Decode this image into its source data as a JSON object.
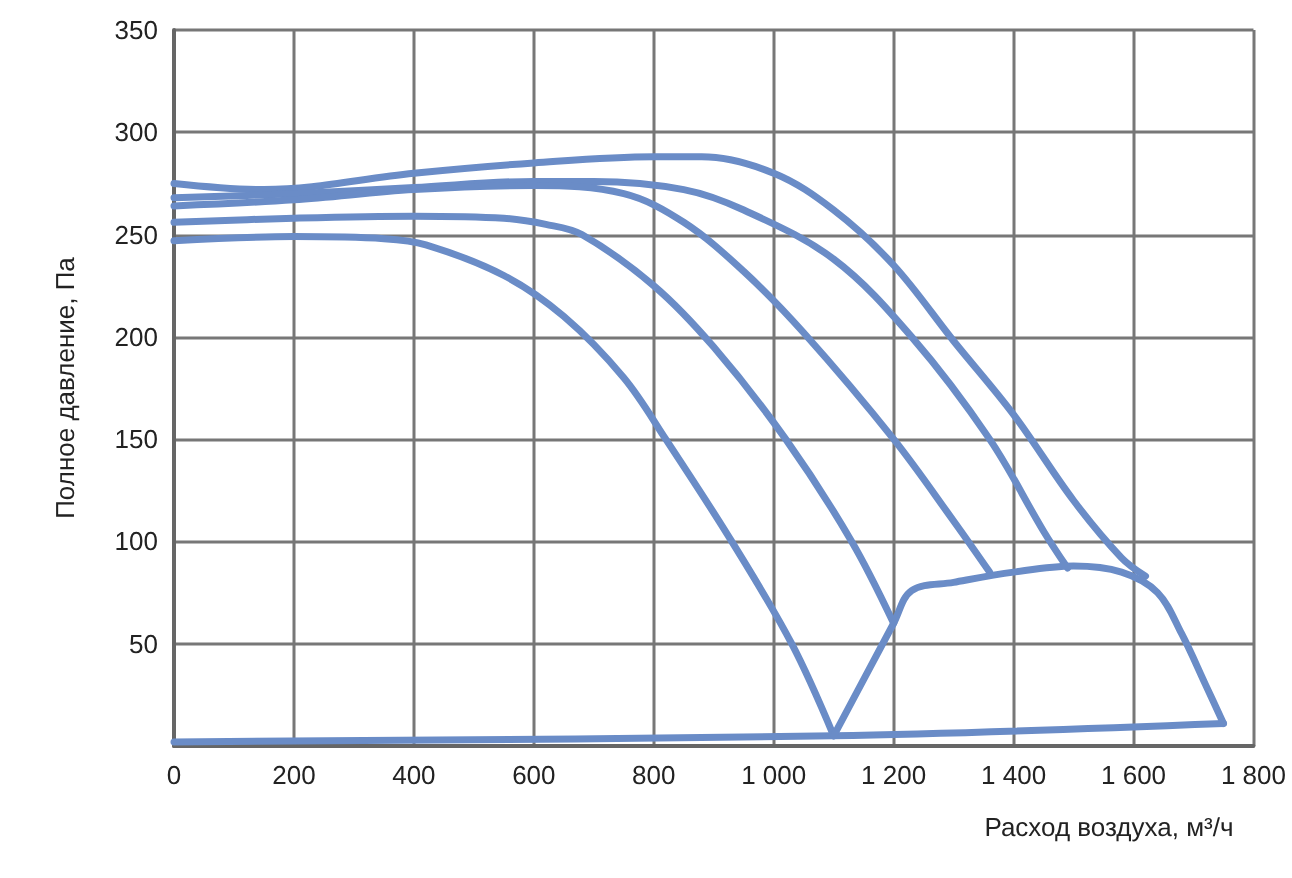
{
  "chart_data": {
    "type": "line",
    "xlabel": "Расход воздуха, м³/ч",
    "ylabel": "Полное давление, Па",
    "xlim": [
      0,
      1800
    ],
    "xticks": [
      0,
      200,
      400,
      600,
      800,
      {
        "value": 1000,
        "label": "1 000"
      },
      {
        "value": 1200,
        "label": "1 200"
      },
      {
        "value": 1400,
        "label": "1 400"
      },
      {
        "value": 1600,
        "label": "1 600"
      },
      {
        "value": 1800,
        "label": "1 800"
      }
    ],
    "ylim": [
      0,
      350
    ],
    "yticks": [
      {
        "value": 0,
        "label": null
      },
      50,
      100,
      150,
      200,
      250,
      300,
      350
    ],
    "grid": true,
    "marker": "none",
    "line_style": "solid",
    "series": [
      {
        "color": "#6a8cc7",
        "x": [
          0,
          150,
          400,
          600,
          800,
          880,
          1000,
          1100,
          1200,
          1300,
          1400,
          1500,
          1580,
          1620
        ],
        "values": [
          275,
          272,
          280,
          285,
          288,
          288,
          280,
          262,
          235,
          198,
          162,
          120,
          92,
          83
        ]
      },
      {
        "color": "#6a8cc7",
        "x": [
          0,
          200,
          400,
          600,
          700,
          850,
          950,
          1100,
          1230,
          1360,
          1450,
          1490
        ],
        "values": [
          268,
          270,
          273,
          276,
          276,
          272,
          262,
          238,
          200,
          150,
          105,
          87
        ]
      },
      {
        "color": "#6a8cc7",
        "x": [
          0,
          200,
          400,
          600,
          750,
          850,
          950,
          1050,
          1200,
          1300,
          1360
        ],
        "values": [
          264,
          267,
          272,
          274,
          270,
          256,
          232,
          202,
          150,
          110,
          85
        ]
      },
      {
        "color": "#6a8cc7",
        "x": [
          0,
          200,
          400,
          550,
          620,
          680,
          800,
          900,
          1020,
          1130,
          1200
        ],
        "values": [
          256,
          258,
          259,
          258,
          255,
          250,
          225,
          195,
          150,
          100,
          60
        ]
      },
      {
        "color": "#6a8cc7",
        "x": [
          0,
          200,
          350,
          420,
          550,
          650,
          750,
          820,
          930,
          1030,
          1100
        ],
        "values": [
          247,
          249,
          248,
          245,
          230,
          210,
          180,
          150,
          100,
          50,
          5
        ]
      },
      {
        "color": "#6a8cc7",
        "x": [
          0,
          1100,
          1750
        ],
        "values": [
          2,
          5,
          11
        ]
      },
      {
        "color": "#6a8cc7",
        "x": [
          1100,
          1200,
          1230,
          1300,
          1400,
          1500,
          1580,
          1640,
          1680,
          1720,
          1750
        ],
        "values": [
          5,
          60,
          76,
          80,
          85,
          88,
          85,
          75,
          55,
          30,
          11
        ]
      }
    ]
  }
}
